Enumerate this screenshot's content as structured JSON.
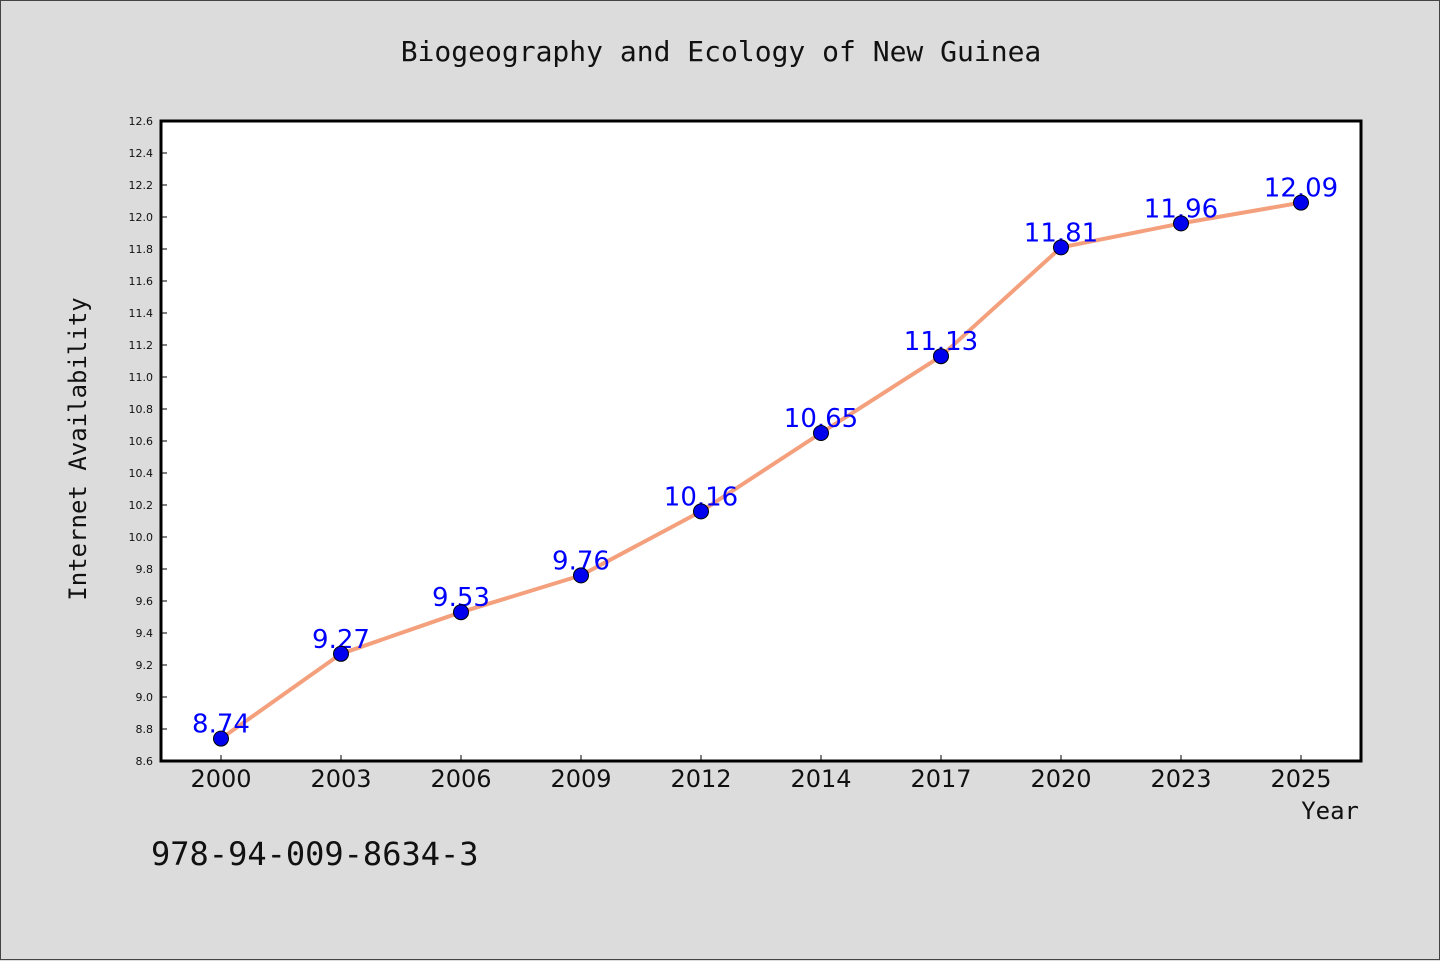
{
  "title": "Biogeography and Ecology of New Guinea",
  "isbn": "978-94-009-8634-3",
  "chart_data": {
    "type": "line",
    "title": "Biogeography and Ecology of New Guinea",
    "xlabel": "Year",
    "ylabel": "Internet Availability",
    "categories": [
      "2000",
      "2003",
      "2006",
      "2009",
      "2012",
      "2014",
      "2017",
      "2020",
      "2023",
      "2025"
    ],
    "series": [
      {
        "values": [
          8.74,
          9.27,
          9.53,
          9.76,
          10.16,
          10.65,
          11.13,
          11.81,
          11.96,
          12.09
        ],
        "labels": [
          "8.74",
          "9.27",
          "9.53",
          "9.76",
          "10.16",
          "10.65",
          "11.13",
          "11.81",
          "11.96",
          "12.09"
        ],
        "line_color": "#f4a07c",
        "marker_color": "#0000ee"
      }
    ],
    "ylim": [
      8.6,
      12.6
    ],
    "yticks": [
      "8.6",
      "8.8",
      "9.0",
      "9.2",
      "9.4",
      "9.6",
      "9.8",
      "10.0",
      "10.2",
      "10.4",
      "10.6",
      "10.8",
      "11.0",
      "11.2",
      "11.4",
      "11.6",
      "11.8",
      "12.0",
      "12.2",
      "12.4",
      "12.6"
    ],
    "grid": false,
    "legend": "none"
  }
}
